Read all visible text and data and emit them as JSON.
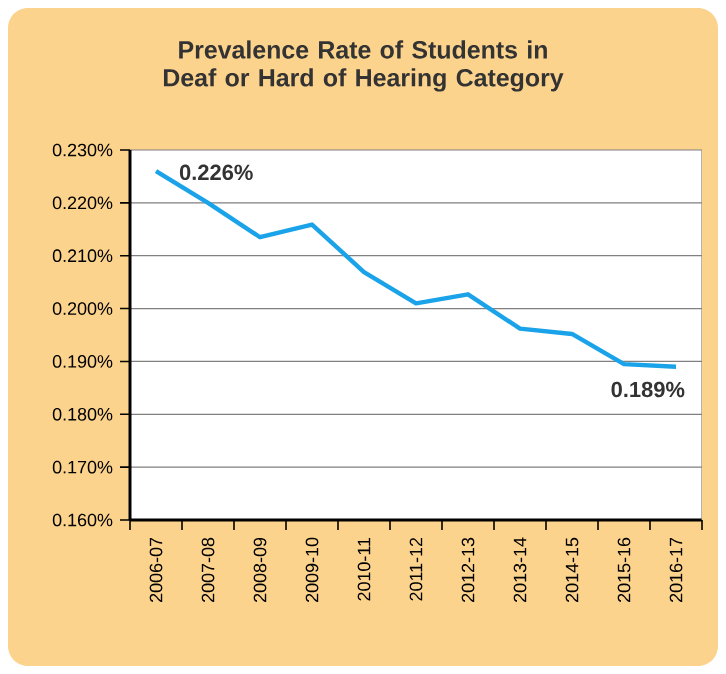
{
  "chart_data": {
    "type": "line",
    "title": "Prevalence Rate of Students in Deaf or Hard of Hearing Category",
    "categories": [
      "2006-07",
      "2007-08",
      "2008-09",
      "2009-10",
      "2010-11",
      "2011-12",
      "2012-13",
      "2013-14",
      "2014-15",
      "2015-16",
      "2016-17"
    ],
    "series": [
      {
        "color": "#1aa3e8",
        "values": [
          0.226,
          0.22,
          0.2135,
          0.2159,
          0.2069,
          0.201,
          0.2027,
          0.1962,
          0.1952,
          0.1895,
          0.189
        ]
      }
    ],
    "ylim": [
      0.16,
      0.23
    ],
    "yticks": [
      {
        "value": 0.16,
        "label": "0.160%"
      },
      {
        "value": 0.17,
        "label": "0.170%"
      },
      {
        "value": 0.18,
        "label": "0.180%"
      },
      {
        "value": 0.19,
        "label": "0.190%"
      },
      {
        "value": 0.2,
        "label": "0.200%"
      },
      {
        "value": 0.21,
        "label": "0.210%"
      },
      {
        "value": 0.22,
        "label": "0.220%"
      },
      {
        "value": 0.23,
        "label": "0.230%"
      }
    ],
    "annotations": [
      {
        "text": "0.226%",
        "x": "2006-07",
        "y": 0.226
      },
      {
        "text": "0.189%",
        "x": "2016-17",
        "y": 0.189
      }
    ],
    "grid": "y",
    "marker": "none",
    "line_style": "solid"
  }
}
